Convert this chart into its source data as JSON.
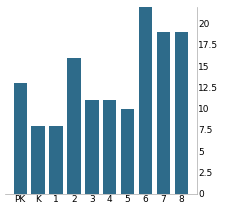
{
  "categories": [
    "PK",
    "K",
    "1",
    "2",
    "3",
    "4",
    "5",
    "6",
    "7",
    "8"
  ],
  "values": [
    13,
    8,
    8,
    16,
    11,
    11,
    10,
    22,
    19,
    19
  ],
  "bar_color": "#2e6b8a",
  "ylim_max": 22,
  "yticks": [
    0,
    2.5,
    5,
    7.5,
    10,
    12.5,
    15,
    17.5,
    20
  ],
  "background_color": "#ffffff",
  "tick_fontsize": 6.5,
  "bar_width": 0.75
}
